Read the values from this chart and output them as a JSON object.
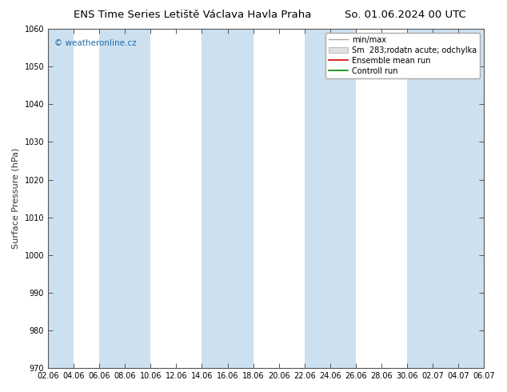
{
  "title_left": "ENS Time Series Letiště Václava Havla Praha",
  "title_right": "So. 01.06.2024 00 UTC",
  "ylabel": "Surface Pressure (hPa)",
  "ylim": [
    970,
    1060
  ],
  "yticks": [
    970,
    980,
    990,
    1000,
    1010,
    1020,
    1030,
    1040,
    1050,
    1060
  ],
  "xtick_labels": [
    "02.06",
    "04.06",
    "06.06",
    "08.06",
    "10.06",
    "12.06",
    "14.06",
    "16.06",
    "18.06",
    "20.06",
    "22.06",
    "24.06",
    "26.06",
    "28.06",
    "30.06",
    "02.07",
    "04.07",
    "06.07"
  ],
  "n_xticks": 18,
  "bg_color": "#ffffff",
  "band_color": "#cce0f0",
  "band_alpha": 1.0,
  "band_positions": [
    0,
    4,
    12,
    20,
    28
  ],
  "band_widths": [
    2,
    4,
    4,
    4,
    2
  ],
  "watermark": "© weatheronline.cz",
  "watermark_color": "#1a6aab",
  "legend_label1": "min/max",
  "legend_label2": "Sm  283;rodatn acute; odchylka",
  "legend_label3": "Ensemble mean run",
  "legend_label4": "Controll run",
  "legend_color1": "#aaaaaa",
  "legend_color2": "#cccccc",
  "legend_color3": "#dd0000",
  "legend_color4": "#008800",
  "title_fontsize": 9.5,
  "tick_fontsize": 7,
  "ylabel_fontsize": 8,
  "watermark_fontsize": 7.5,
  "legend_fontsize": 7
}
